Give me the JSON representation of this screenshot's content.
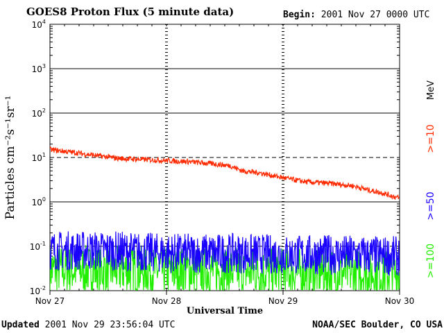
{
  "header": {
    "title": "GOES8 Proton Flux (5 minute data)",
    "begin_label": "Begin:",
    "begin_value": "2001 Nov 27 0000 UTC"
  },
  "footer": {
    "updated_label": "Updated",
    "updated_value": "2001 Nov 29 23:56:04 UTC",
    "credit": "NOAA/SEC Boulder, CO USA"
  },
  "chart_data": {
    "type": "line",
    "yscale": "log",
    "ylim": [
      0.01,
      10000
    ],
    "y_ticks": [
      {
        "base": "10",
        "exp": "-2"
      },
      {
        "base": "10",
        "exp": "-1"
      },
      {
        "base": "10",
        "exp": "0"
      },
      {
        "base": "10",
        "exp": "1"
      },
      {
        "base": "10",
        "exp": "2"
      },
      {
        "base": "10",
        "exp": "3"
      },
      {
        "base": "10",
        "exp": "4"
      }
    ],
    "ylabel": "Particles cm⁻²s⁻¹sr⁻¹",
    "x_ticks": [
      "Nov 27",
      "Nov 28",
      "Nov 29",
      "Nov 30"
    ],
    "xlabel": "Universal Time",
    "threshold_dashed": [
      10,
      0.1
    ],
    "legend_unit": "MeV",
    "series": [
      {
        "name": ">=10",
        "color": "#ff2a00",
        "x_days": [
          0.0,
          0.2,
          0.4,
          0.6,
          0.8,
          1.0,
          1.2,
          1.4,
          1.55,
          1.65,
          1.8,
          2.0,
          2.2,
          2.4,
          2.6,
          2.75,
          2.85,
          3.0
        ],
        "values": [
          15,
          13,
          11,
          9.5,
          9,
          8.5,
          8,
          7.2,
          6.5,
          5,
          4.5,
          3.5,
          2.8,
          2.6,
          2.3,
          1.8,
          1.6,
          1.2
        ]
      },
      {
        "name": ">=50",
        "color": "#1a00ff",
        "x_days": [
          0.0,
          0.5,
          1.0,
          1.5,
          2.0,
          2.5,
          3.0
        ],
        "values": [
          0.08,
          0.08,
          0.07,
          0.07,
          0.065,
          0.065,
          0.06
        ]
      },
      {
        "name": ">=100",
        "color": "#22ee00",
        "x_days": [
          0.0,
          0.5,
          1.0,
          1.5,
          2.0,
          2.5,
          3.0
        ],
        "values": [
          0.03,
          0.03,
          0.028,
          0.028,
          0.026,
          0.026,
          0.025
        ]
      }
    ]
  }
}
